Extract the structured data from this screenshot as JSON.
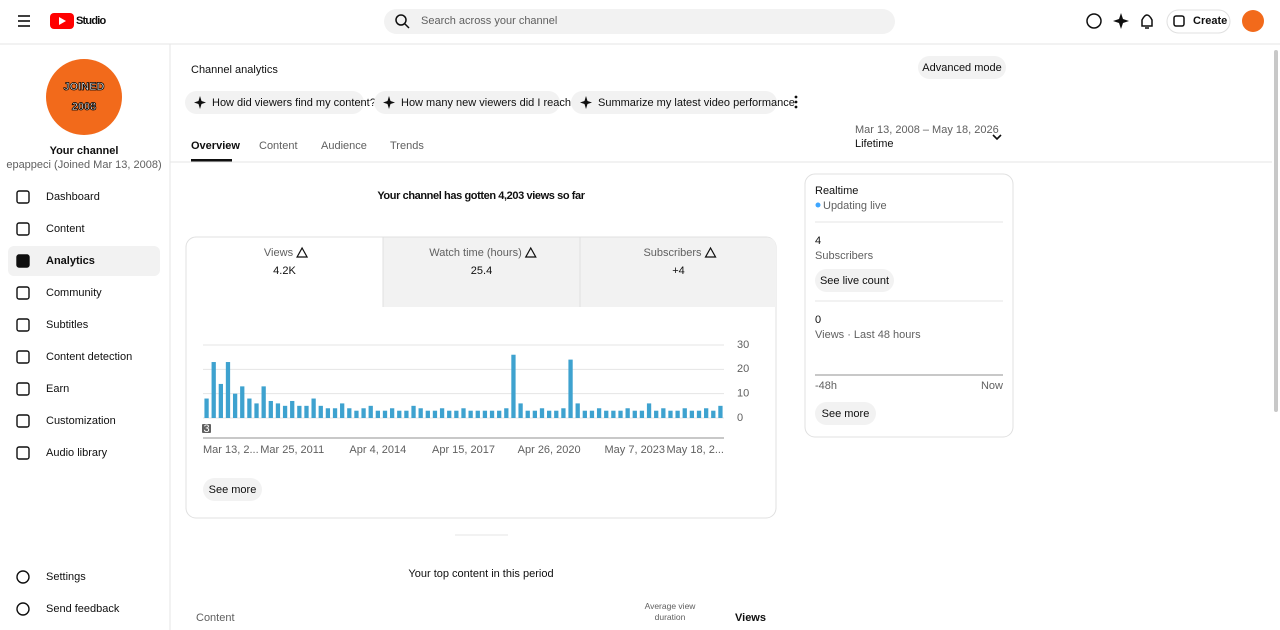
{
  "header": {
    "logo": "Studio",
    "search_placeholder": "Search across your channel",
    "create": "Create"
  },
  "sidebar": {
    "avatar_line1": "JOINED",
    "avatar_line2": "2008",
    "channel_name": "Your channel",
    "channel_sub": "epappeci (Joined Mar 13, 2008)",
    "nav": [
      "Dashboard",
      "Content",
      "Analytics",
      "Community",
      "Subtitles",
      "Content detection",
      "Earn",
      "Customization",
      "Audio library"
    ],
    "footer": [
      "Settings",
      "Send feedback"
    ]
  },
  "main": {
    "title": "Channel analytics",
    "advanced": "Advanced mode",
    "prompts": [
      "How did viewers find my content?",
      "How many new viewers did I reach?",
      "Summarize my latest video performance"
    ],
    "tabs": [
      "Overview",
      "Content",
      "Audience",
      "Trends"
    ],
    "date_range": "Mar 13, 2008 – May 18, 2026",
    "period": "Lifetime",
    "headline": "Your channel has gotten 4,203 views so far",
    "metrics": [
      {
        "label": "Views",
        "value": "4.2K"
      },
      {
        "label": "Watch time (hours)",
        "value": "25.4"
      },
      {
        "label": "Subscribers",
        "value": "+4"
      }
    ],
    "badge": "3",
    "see_more": "See more",
    "top_content_title": "Your top content in this period",
    "table_headers": [
      "Content",
      "Average view duration",
      "Views"
    ]
  },
  "chart_data": {
    "type": "bar",
    "color": "#3ea2cf",
    "grid": true,
    "categories": [
      "Mar 13, 2...",
      null,
      null,
      null,
      null,
      null,
      null,
      null,
      null,
      null,
      null,
      null,
      "Mar 25, 2011",
      null,
      null,
      null,
      null,
      null,
      null,
      null,
      null,
      null,
      null,
      null,
      "Apr 4, 2014",
      null,
      null,
      null,
      null,
      null,
      null,
      null,
      null,
      null,
      null,
      null,
      "Apr 15, 2017",
      null,
      null,
      null,
      null,
      null,
      null,
      null,
      null,
      null,
      null,
      null,
      "Apr 26, 2020",
      null,
      null,
      null,
      null,
      null,
      null,
      null,
      null,
      null,
      null,
      null,
      "May 7, 2023",
      null,
      null,
      null,
      null,
      null,
      null,
      null,
      null,
      null,
      null,
      null,
      "May 18, 2..."
    ],
    "values": [
      8,
      23,
      14,
      23,
      10,
      13,
      8,
      6,
      13,
      7,
      6,
      5,
      7,
      5,
      5,
      8,
      5,
      4,
      4,
      6,
      4,
      3,
      4,
      5,
      3,
      3,
      4,
      3,
      3,
      5,
      4,
      3,
      3,
      4,
      3,
      3,
      4,
      3,
      3,
      3,
      3,
      3,
      4,
      26,
      6,
      3,
      3,
      4,
      3,
      3,
      4,
      24,
      6,
      3,
      3,
      4,
      3,
      3,
      3,
      4,
      3,
      3,
      6,
      3,
      4,
      3,
      3,
      4,
      3,
      3,
      4,
      3,
      5
    ],
    "ylim": [
      0,
      30
    ],
    "yticks": [
      0,
      10,
      20,
      30
    ]
  },
  "realtime": {
    "title": "Realtime",
    "status": "Updating live",
    "subscribers_value": "4",
    "subscribers_label": "Subscribers",
    "live_count": "See live count",
    "views_value": "0",
    "views_label": "Views · Last 48 hours",
    "axis_start": "-48h",
    "axis_end": "Now",
    "see_more": "See more"
  }
}
